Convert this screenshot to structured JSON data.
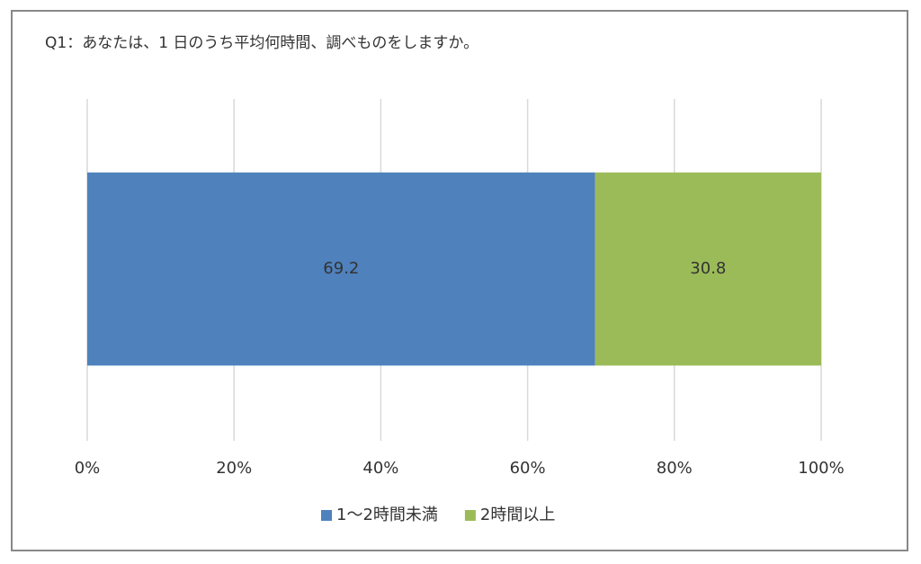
{
  "chart_data": {
    "type": "bar",
    "orientation": "horizontal",
    "stacked": true,
    "title": "Q1：あなたは、1 日のうち平均何時間、調べものをしますか。",
    "categories": [
      null
    ],
    "series": [
      {
        "name": "1～2時間未満",
        "color": "#4f81bd",
        "values": [
          69.2
        ]
      },
      {
        "name": "2時間以上",
        "color": "#9bbb59",
        "values": [
          30.8
        ]
      }
    ],
    "xlim": [
      0,
      100
    ],
    "xticks": [
      {
        "value": 0,
        "label": "0%"
      },
      {
        "value": 20,
        "label": "20%"
      },
      {
        "value": 40,
        "label": "40%"
      },
      {
        "value": 60,
        "label": "60%"
      },
      {
        "value": 80,
        "label": "80%"
      },
      {
        "value": 100,
        "label": "100%"
      }
    ],
    "grid": true,
    "legend": "bottom"
  }
}
